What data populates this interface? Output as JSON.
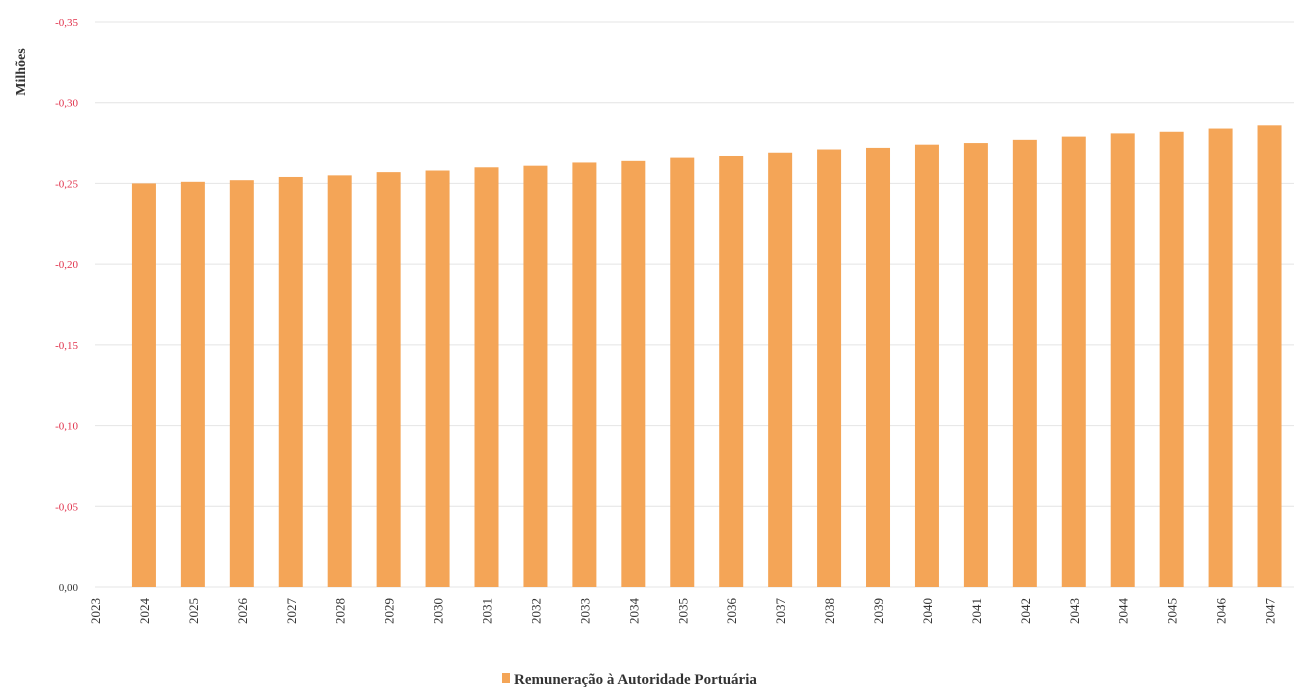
{
  "chart_data": {
    "type": "bar",
    "ylabel": "Milhões",
    "xlabel": "",
    "ylim": [
      0,
      0.35
    ],
    "reversed_y": true,
    "grid": true,
    "legend_position": "bottom",
    "y_ticks": [
      {
        "value": 0.0,
        "label": "0,00"
      },
      {
        "value": 0.05,
        "label": "-0,05"
      },
      {
        "value": 0.1,
        "label": "-0,10"
      },
      {
        "value": 0.15,
        "label": "-0,15"
      },
      {
        "value": 0.2,
        "label": "-0,20"
      },
      {
        "value": 0.25,
        "label": "-0,25"
      },
      {
        "value": 0.3,
        "label": "-0,30"
      },
      {
        "value": 0.35,
        "label": "-0,35"
      }
    ],
    "categories": [
      "2023",
      "2024",
      "2025",
      "2026",
      "2027",
      "2028",
      "2029",
      "2030",
      "2031",
      "2032",
      "2033",
      "2034",
      "2035",
      "2036",
      "2037",
      "2038",
      "2039",
      "2040",
      "2041",
      "2042",
      "2043",
      "2044",
      "2045",
      "2046",
      "2047"
    ],
    "series": [
      {
        "name": "Remuneração à Autoridade Portuária",
        "color": "#f4a557",
        "values": [
          0,
          -0.25,
          -0.251,
          -0.252,
          -0.254,
          -0.255,
          -0.257,
          -0.258,
          -0.26,
          -0.261,
          -0.263,
          -0.264,
          -0.266,
          -0.267,
          -0.269,
          -0.271,
          -0.272,
          -0.274,
          -0.275,
          -0.277,
          -0.279,
          -0.281,
          -0.282,
          -0.284,
          -0.286
        ]
      }
    ]
  }
}
